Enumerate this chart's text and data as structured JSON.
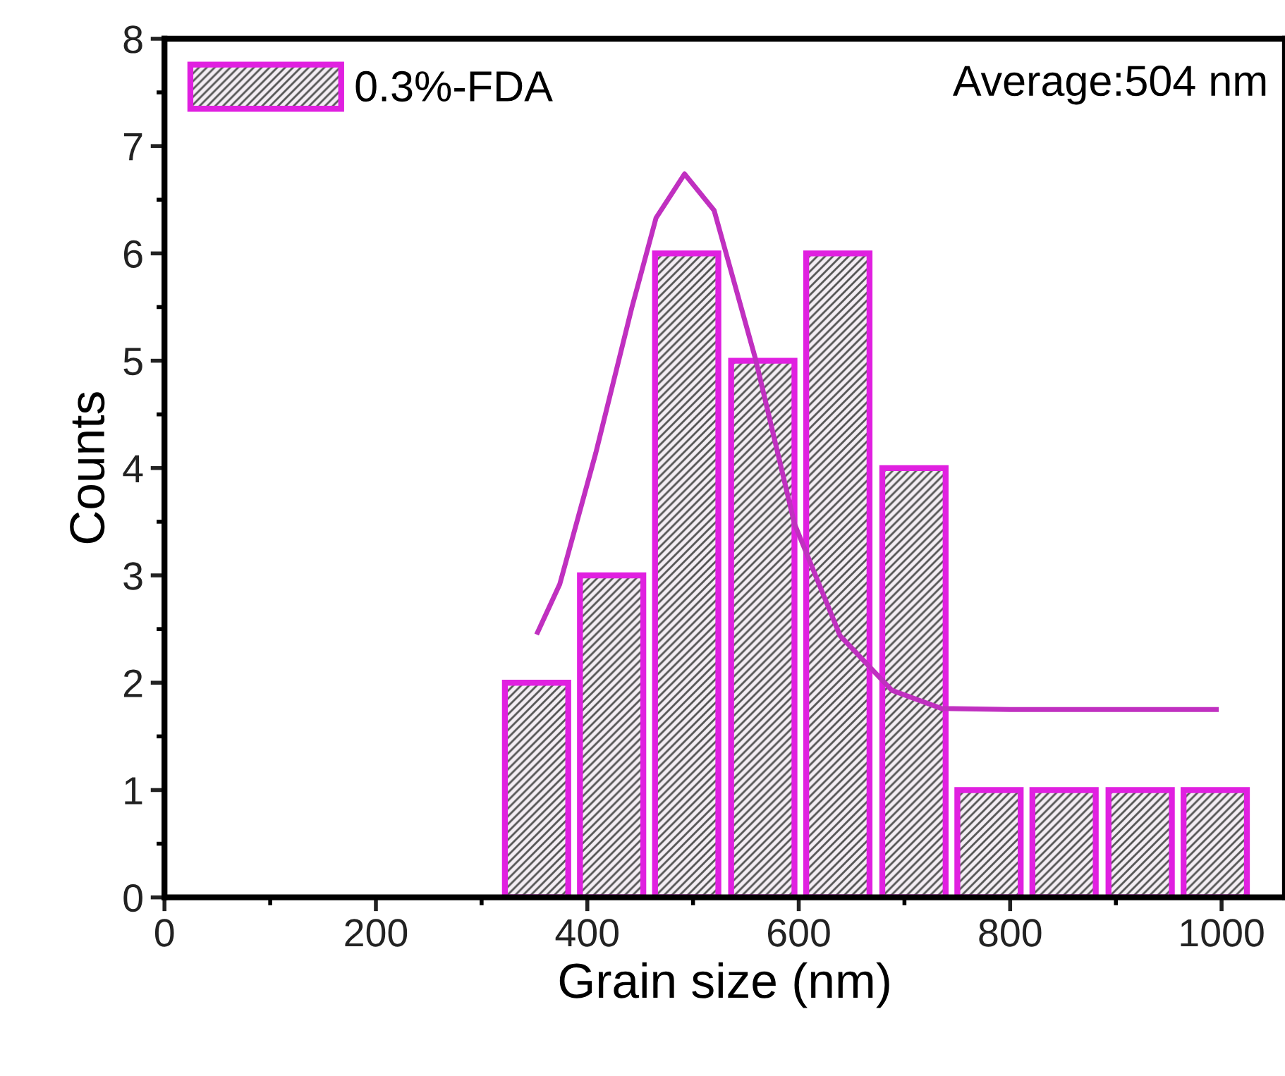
{
  "chart_data": {
    "type": "bar",
    "xlabel": "Grain size (nm)",
    "ylabel": "Counts",
    "xlim": [
      0,
      1060
    ],
    "ylim": [
      0,
      8
    ],
    "xticks": [
      0,
      200,
      400,
      600,
      800,
      1000
    ],
    "yticks": [
      0,
      1,
      2,
      3,
      4,
      5,
      6,
      7,
      8
    ],
    "grid": false,
    "legend": "top left",
    "annotations": [
      "Average:504 nm"
    ],
    "series": [
      {
        "name": "0.3%-FDA",
        "color": "#e020e0",
        "x": [
          352,
          423,
          494,
          566,
          637,
          709,
          780,
          851,
          923,
          994
        ],
        "values": [
          2,
          3,
          6,
          5,
          6,
          4,
          1,
          1,
          1,
          1
        ]
      },
      {
        "type": "line",
        "color": "#c030c0",
        "x": [
          353,
          374,
          408,
          442,
          465,
          492,
          520,
          559,
          596,
          639,
          688,
          735,
          800,
          900,
          995
        ],
        "values": [
          2.47,
          2.92,
          4.14,
          5.49,
          6.33,
          6.74,
          6.4,
          5.02,
          3.48,
          2.44,
          1.93,
          1.76,
          1.75,
          1.75,
          1.75
        ]
      }
    ]
  }
}
